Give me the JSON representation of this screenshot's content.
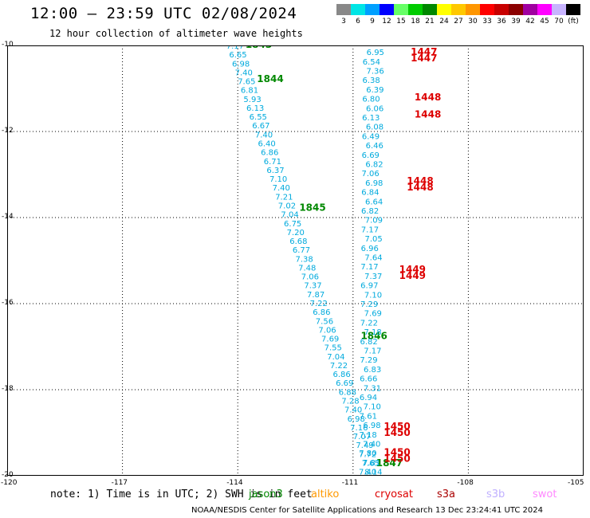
{
  "title": "12:00 – 23:59 UTC 02/08/2024",
  "subtitle": "12 hour collection of altimeter wave heights",
  "legend": {
    "items": [
      {
        "label": "3",
        "color": "#888888"
      },
      {
        "label": "6",
        "color": "#00e5e5"
      },
      {
        "label": "9",
        "color": "#00a0ff"
      },
      {
        "label": "12",
        "color": "#0000ff"
      },
      {
        "label": "15",
        "color": "#66ff66"
      },
      {
        "label": "18",
        "color": "#00cc00"
      },
      {
        "label": "21",
        "color": "#008800"
      },
      {
        "label": "24",
        "color": "#ffff00"
      },
      {
        "label": "27",
        "color": "#ffc800"
      },
      {
        "label": "30",
        "color": "#ff9600"
      },
      {
        "label": "33",
        "color": "#ff0000"
      },
      {
        "label": "36",
        "color": "#c80000"
      },
      {
        "label": "39",
        "color": "#8b0000"
      },
      {
        "label": "42",
        "color": "#a000a0"
      },
      {
        "label": "45",
        "color": "#ff00ff"
      },
      {
        "label": "70",
        "color": "#c8b4ff"
      },
      {
        "label": "(ft)",
        "color": "#000000"
      }
    ]
  },
  "axes": {
    "x_ticks": [
      "-120",
      "-117",
      "-114",
      "-111",
      "-108",
      "-105"
    ],
    "y_ticks": [
      "-10",
      "-12",
      "-14",
      "-16",
      "-18",
      "-20"
    ],
    "x_range": [
      -120,
      -105
    ],
    "y_range": [
      -20,
      -10
    ]
  },
  "colors": {
    "wave_text": "#00aadd",
    "jason3_time": "#008800",
    "cryosat_time": "#dd0000",
    "grid": "#000000"
  },
  "map_data": {
    "track_jason3": {
      "heights": [
        "7.17",
        "6.65",
        "6.98",
        "7.40",
        "7.65",
        "6.81",
        "5.93",
        "6.13",
        "6.55",
        "6.67",
        "7.40",
        "6.40",
        "6.86",
        "6.71",
        "6.37",
        "7.10",
        "7.40",
        "7.21",
        "7.02",
        "7.04",
        "6.75",
        "7.20",
        "6.68",
        "6.77",
        "7.38",
        "7.48",
        "7.06",
        "7.37",
        "7.87",
        "7.22",
        "6.86",
        "7.56",
        "7.06",
        "7.69",
        "7.55",
        "7.04",
        "7.22",
        "6.86",
        "6.69",
        "6.88",
        "7.28",
        "7.40",
        "6.98",
        "7.16",
        "7.07",
        "7.49",
        "7.72",
        "7.65",
        "8.14"
      ],
      "times": [
        {
          "label": "1843",
          "lon": -113.8,
          "lat": -9.98
        },
        {
          "label": "1844",
          "lon": -113.5,
          "lat": -10.78
        },
        {
          "label": "1845",
          "lon": -112.4,
          "lat": -13.77
        },
        {
          "label": "1846",
          "lon": -110.8,
          "lat": -16.75
        },
        {
          "label": "1847",
          "lon": -110.4,
          "lat": -19.7
        }
      ]
    },
    "track_cryosat": {
      "heights": [
        "6.95",
        "6.54",
        "7.36",
        "6.38",
        "6.39",
        "6.80",
        "6.06",
        "6.13",
        "6.08",
        "6.49",
        "6.46",
        "6.69",
        "6.82",
        "7.06",
        "6.98",
        "6.84",
        "6.64",
        "6.82",
        "7.09",
        "7.17",
        "7.05",
        "6.96",
        "7.64",
        "7.17",
        "7.37",
        "6.97",
        "7.10",
        "7.29",
        "7.69",
        "7.22",
        "7.18",
        "6.82",
        "7.17",
        "7.29",
        "6.83",
        "6.66",
        "7.31",
        "6.94",
        "7.10",
        "7.61",
        "6.98",
        "7.18",
        "7.40",
        "7.80",
        "7.81",
        "7.40"
      ],
      "times": [
        {
          "label": "1447",
          "lon": -109.5,
          "lat": -10.15
        },
        {
          "label": "1447",
          "lon": -109.5,
          "lat": -10.3
        },
        {
          "label": "1448",
          "lon": -109.4,
          "lat": -11.2
        },
        {
          "label": "1448",
          "lon": -109.4,
          "lat": -11.6
        },
        {
          "label": "1448",
          "lon": -109.6,
          "lat": -13.15
        },
        {
          "label": "1448",
          "lon": -109.6,
          "lat": -13.3
        },
        {
          "label": "1449",
          "lon": -109.8,
          "lat": -15.2
        },
        {
          "label": "1449",
          "lon": -109.8,
          "lat": -15.35
        },
        {
          "label": "1450",
          "lon": -110.2,
          "lat": -18.85
        },
        {
          "label": "1450",
          "lon": -110.2,
          "lat": -19.0
        },
        {
          "label": "1450",
          "lon": -110.2,
          "lat": -19.45
        },
        {
          "label": "1450",
          "lon": -110.2,
          "lat": -19.6
        }
      ]
    }
  },
  "note": "note: 1) Time is in UTC; 2) SWH is in feet",
  "satellites": [
    {
      "name": "jason3",
      "color": "#008800"
    },
    {
      "name": "altiko",
      "color": "#ff9900"
    },
    {
      "name": "cryosat",
      "color": "#dd0000"
    },
    {
      "name": "s3a",
      "color": "#aa0000"
    },
    {
      "name": "s3b",
      "color": "#c0b0ff"
    },
    {
      "name": "swot",
      "color": "#ff88ff"
    }
  ],
  "credit": "NOAA/NESDIS Center for Satellite Applications and Research   13 Dec 23:24:41 UTC 2024"
}
